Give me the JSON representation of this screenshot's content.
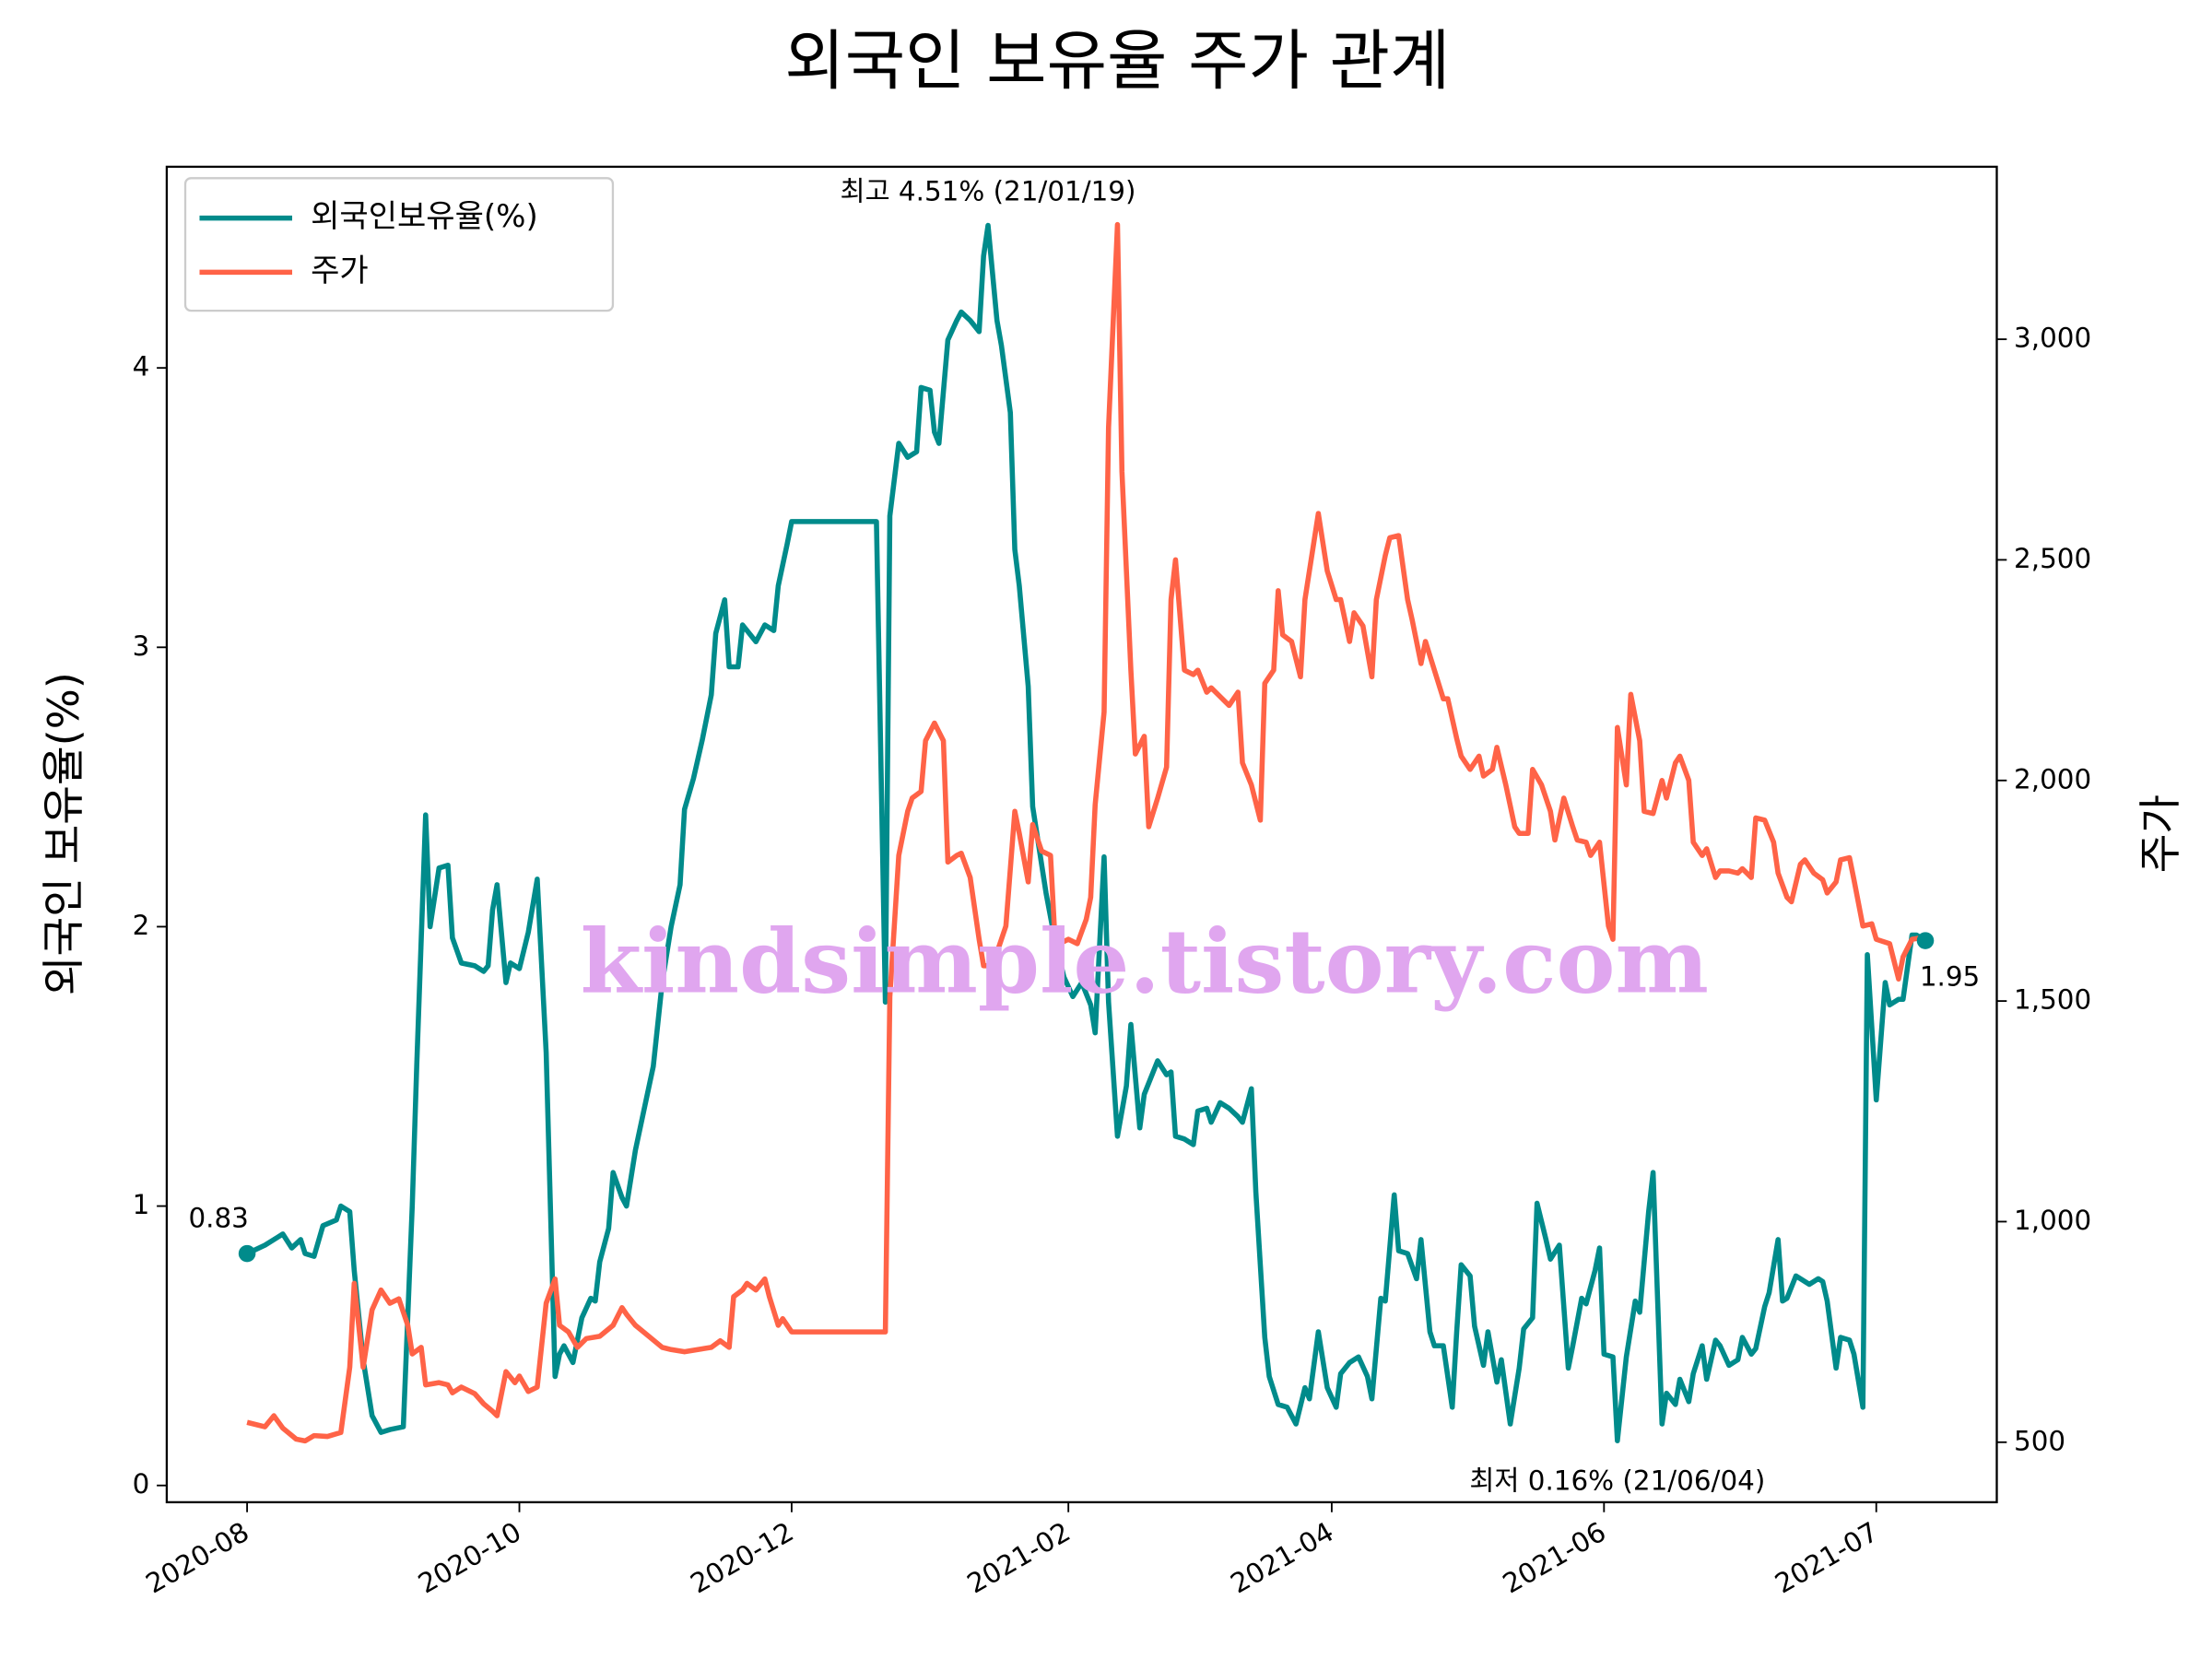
{
  "chart_data": {
    "type": "line",
    "title": "외국인 보유율 주가 관계",
    "ylabel": "외국인 보유율(%)",
    "y2label": "주가",
    "ylabel_color": "#008b8b",
    "y2label_color": "#ff6347",
    "legend": "upper left",
    "grid": false,
    "watermark": "kindsimple.tistory.com",
    "xlim": [
      "2020-07-14",
      "2021-08-28"
    ],
    "xticks": [
      {
        "value": "2020-08-01",
        "label": "2020-08"
      },
      {
        "value": "2020-10-01",
        "label": "2020-10"
      },
      {
        "value": "2020-12-01",
        "label": "2020-12"
      },
      {
        "value": "2021-02-01",
        "label": "2021-02"
      },
      {
        "value": "2021-04-01",
        "label": "2021-04"
      },
      {
        "value": "2021-06-01",
        "label": "2021-06"
      },
      {
        "value": "2021-08-01",
        "label": "2021-07"
      }
    ],
    "ylim": [
      -0.06,
      4.72
    ],
    "yticks": [
      0,
      1,
      2,
      3,
      4
    ],
    "y2lim": [
      364,
      3391
    ],
    "y2ticks": [
      500,
      {
        "value": 1000,
        "label": "1,000"
      },
      {
        "value": 1500,
        "label": "1,500"
      },
      {
        "value": 2000,
        "label": "2,000"
      },
      {
        "value": 2500,
        "label": "2,500"
      },
      {
        "value": 3000,
        "label": "3,000"
      }
    ],
    "annotations": [
      {
        "text": "최고 4.51% (21/01/19)",
        "color": "#ff0000"
      },
      {
        "text": "최저 0.16% (21/06/04)",
        "color": "#0000ff"
      }
    ],
    "series": [
      {
        "name": "외국인보유율(%)",
        "color": "#008b8b",
        "x": [
          "2020-08-01",
          "2020-08-05",
          "2020-08-08",
          "2020-08-09",
          "2020-08-11",
          "2020-08-13",
          "2020-08-14",
          "2020-08-16",
          "2020-08-18",
          "2020-08-21",
          "2020-08-22",
          "2020-08-24",
          "2020-08-25",
          "2020-08-27",
          "2020-08-29",
          "2020-08-31",
          "2020-09-02",
          "2020-09-05",
          "2020-09-07",
          "2020-09-08",
          "2020-09-10",
          "2020-09-11",
          "2020-09-13",
          "2020-09-15",
          "2020-09-16",
          "2020-09-18",
          "2020-09-21",
          "2020-09-23",
          "2020-09-24",
          "2020-09-25",
          "2020-09-26",
          "2020-09-28",
          "2020-09-29",
          "2020-10-01",
          "2020-10-03",
          "2020-10-05",
          "2020-10-07",
          "2020-10-09",
          "2020-10-10",
          "2020-10-11",
          "2020-10-13",
          "2020-10-15",
          "2020-10-17",
          "2020-10-18",
          "2020-10-19",
          "2020-10-21",
          "2020-10-22",
          "2020-10-24",
          "2020-10-25",
          "2020-10-27",
          "2020-10-29",
          "2020-10-31",
          "2020-11-02",
          "2020-11-04",
          "2020-11-06",
          "2020-11-07",
          "2020-11-09",
          "2020-11-11",
          "2020-11-13",
          "2020-11-14",
          "2020-11-16",
          "2020-11-17",
          "2020-11-19",
          "2020-11-20",
          "2020-11-23",
          "2020-11-25",
          "2020-11-27",
          "2020-11-28",
          "2020-11-30",
          "2020-12-01",
          "2020-12-20",
          "2020-12-22",
          "2020-12-23",
          "2020-12-25",
          "2020-12-27",
          "2020-12-29",
          "2020-12-30",
          "2021-01-01",
          "2021-01-02",
          "2021-01-03",
          "2021-01-05",
          "2021-01-07",
          "2021-01-08",
          "2021-01-10",
          "2021-01-12",
          "2021-01-13",
          "2021-01-14",
          "2021-01-16",
          "2021-01-17",
          "2021-01-19",
          "2021-01-20",
          "2021-01-21",
          "2021-01-23",
          "2021-01-24",
          "2021-01-27",
          "2021-01-29",
          "2021-01-31",
          "2021-02-02",
          "2021-02-04",
          "2021-02-06",
          "2021-02-07",
          "2021-02-09",
          "2021-02-10",
          "2021-02-12",
          "2021-02-14",
          "2021-02-15",
          "2021-02-17",
          "2021-02-18",
          "2021-02-20",
          "2021-02-21",
          "2021-02-23",
          "2021-02-24",
          "2021-02-25",
          "2021-02-27",
          "2021-03-01",
          "2021-03-02",
          "2021-03-04",
          "2021-03-05",
          "2021-03-07",
          "2021-03-09",
          "2021-03-11",
          "2021-03-12",
          "2021-03-14",
          "2021-03-15",
          "2021-03-17",
          "2021-03-18",
          "2021-03-20",
          "2021-03-22",
          "2021-03-24",
          "2021-03-26",
          "2021-03-27",
          "2021-03-29",
          "2021-03-31",
          "2021-04-02",
          "2021-04-03",
          "2021-04-05",
          "2021-04-07",
          "2021-04-09",
          "2021-04-10",
          "2021-04-12",
          "2021-04-13",
          "2021-04-15",
          "2021-04-16",
          "2021-04-18",
          "2021-04-20",
          "2021-04-21",
          "2021-04-23",
          "2021-04-24",
          "2021-04-26",
          "2021-04-28",
          "2021-04-29",
          "2021-04-30",
          "2021-05-02",
          "2021-05-03",
          "2021-05-05",
          "2021-05-06",
          "2021-05-08",
          "2021-05-09",
          "2021-05-11",
          "2021-05-13",
          "2021-05-14",
          "2021-05-16",
          "2021-05-17",
          "2021-05-19",
          "2021-05-20",
          "2021-05-22",
          "2021-05-24",
          "2021-05-25",
          "2021-05-27",
          "2021-05-28",
          "2021-05-30",
          "2021-05-31",
          "2021-06-01",
          "2021-06-03",
          "2021-06-04",
          "2021-06-06",
          "2021-06-08",
          "2021-06-09",
          "2021-06-11",
          "2021-06-12",
          "2021-06-14",
          "2021-06-15",
          "2021-06-17",
          "2021-06-18",
          "2021-06-20",
          "2021-06-21",
          "2021-06-23",
          "2021-06-24",
          "2021-06-26",
          "2021-06-27",
          "2021-06-29",
          "2021-07-01",
          "2021-07-02",
          "2021-07-04",
          "2021-07-05",
          "2021-07-07",
          "2021-07-08",
          "2021-07-10",
          "2021-07-11",
          "2021-07-12",
          "2021-07-14",
          "2021-07-15",
          "2021-07-17",
          "2021-07-19",
          "2021-07-20",
          "2021-07-21",
          "2021-07-23",
          "2021-07-24",
          "2021-07-26",
          "2021-07-27",
          "2021-07-29",
          "2021-07-30",
          "2021-08-01",
          "2021-08-03",
          "2021-08-04",
          "2021-08-06",
          "2021-08-07",
          "2021-08-09",
          "2021-08-10",
          "2021-08-12"
        ],
        "values": [
          0.83,
          0.86,
          0.89,
          0.9,
          0.85,
          0.88,
          0.83,
          0.82,
          0.93,
          0.95,
          1.0,
          0.98,
          0.77,
          0.45,
          0.25,
          0.19,
          0.2,
          0.21,
          1.0,
          1.5,
          2.4,
          2.0,
          2.21,
          2.22,
          1.96,
          1.87,
          1.86,
          1.84,
          1.86,
          2.06,
          2.15,
          1.8,
          1.87,
          1.85,
          1.98,
          2.17,
          1.55,
          0.39,
          0.47,
          0.5,
          0.44,
          0.6,
          0.67,
          0.66,
          0.8,
          0.92,
          1.12,
          1.03,
          1.0,
          1.2,
          1.35,
          1.5,
          1.8,
          2.0,
          2.15,
          2.42,
          2.53,
          2.67,
          2.83,
          3.05,
          3.17,
          2.93,
          2.93,
          3.08,
          3.02,
          3.08,
          3.06,
          3.22,
          3.37,
          3.45,
          3.45,
          1.73,
          3.47,
          3.73,
          3.68,
          3.7,
          3.93,
          3.92,
          3.77,
          3.73,
          4.1,
          4.17,
          4.2,
          4.17,
          4.13,
          4.4,
          4.51,
          4.17,
          4.08,
          3.84,
          3.35,
          3.22,
          2.86,
          2.43,
          2.12,
          1.95,
          1.82,
          1.75,
          1.8,
          1.72,
          1.62,
          2.25,
          1.73,
          1.25,
          1.43,
          1.65,
          1.28,
          1.4,
          1.48,
          1.52,
          1.47,
          1.48,
          1.25,
          1.24,
          1.22,
          1.34,
          1.35,
          1.3,
          1.37,
          1.35,
          1.32,
          1.3,
          1.42,
          1.05,
          0.53,
          0.39,
          0.29,
          0.28,
          0.22,
          0.35,
          0.31,
          0.55,
          0.35,
          0.28,
          0.4,
          0.44,
          0.46,
          0.39,
          0.31,
          0.67,
          0.66,
          1.04,
          0.84,
          0.83,
          0.74,
          0.88,
          0.55,
          0.5,
          0.5,
          0.28,
          0.55,
          0.79,
          0.75,
          0.57,
          0.43,
          0.55,
          0.37,
          0.45,
          0.22,
          0.42,
          0.56,
          0.6,
          1.01,
          0.88,
          0.81,
          0.86,
          0.42,
          0.5,
          0.67,
          0.65,
          0.77,
          0.85,
          0.47,
          0.46,
          0.16,
          0.46,
          0.66,
          0.62,
          0.98,
          1.12,
          0.22,
          0.33,
          0.29,
          0.38,
          0.3,
          0.4,
          0.5,
          0.38,
          0.52,
          0.5,
          0.43,
          0.45,
          0.53,
          0.47,
          0.49,
          0.64,
          0.69,
          0.88,
          0.66,
          0.67,
          0.75,
          0.74,
          0.72,
          0.74,
          0.73,
          0.66,
          0.42,
          0.53,
          0.52,
          0.47,
          0.28,
          1.9,
          1.38,
          1.8,
          1.72,
          1.74,
          1.74,
          1.97,
          1.97,
          1.95
        ]
      },
      {
        "name": "주가",
        "color": "#ff6347",
        "axis": "y2",
        "x": [
          "2020-08-01",
          "2020-08-05",
          "2020-08-07",
          "2020-08-09",
          "2020-08-12",
          "2020-08-14",
          "2020-08-16",
          "2020-08-19",
          "2020-08-22",
          "2020-08-24",
          "2020-08-25",
          "2020-08-27",
          "2020-08-29",
          "2020-08-31",
          "2020-09-02",
          "2020-09-04",
          "2020-09-06",
          "2020-09-07",
          "2020-09-09",
          "2020-09-10",
          "2020-09-13",
          "2020-09-15",
          "2020-09-16",
          "2020-09-18",
          "2020-09-21",
          "2020-09-23",
          "2020-09-25",
          "2020-09-26",
          "2020-09-28",
          "2020-09-30",
          "2020-10-01",
          "2020-10-03",
          "2020-10-05",
          "2020-10-07",
          "2020-10-09",
          "2020-10-10",
          "2020-10-12",
          "2020-10-14",
          "2020-10-16",
          "2020-10-19",
          "2020-10-22",
          "2020-10-24",
          "2020-10-25",
          "2020-10-27",
          "2020-10-30",
          "2020-11-02",
          "2020-11-04",
          "2020-11-07",
          "2020-11-10",
          "2020-11-13",
          "2020-11-15",
          "2020-11-17",
          "2020-11-18",
          "2020-11-20",
          "2020-11-21",
          "2020-11-23",
          "2020-11-25",
          "2020-11-26",
          "2020-11-28",
          "2020-11-29",
          "2020-12-01",
          "2020-12-22",
          "2020-12-23",
          "2020-12-25",
          "2020-12-27",
          "2020-12-28",
          "2020-12-30",
          "2020-12-31",
          "2021-01-02",
          "2021-01-04",
          "2021-01-05",
          "2021-01-07",
          "2021-01-08",
          "2021-01-10",
          "2021-01-12",
          "2021-01-13",
          "2021-01-15",
          "2021-01-18",
          "2021-01-20",
          "2021-01-21",
          "2021-01-23",
          "2021-01-24",
          "2021-01-26",
          "2021-01-28",
          "2021-01-29",
          "2021-01-31",
          "2021-02-01",
          "2021-02-03",
          "2021-02-05",
          "2021-02-06",
          "2021-02-07",
          "2021-02-09",
          "2021-02-10",
          "2021-02-12",
          "2021-02-13",
          "2021-02-15",
          "2021-02-16",
          "2021-02-18",
          "2021-02-19",
          "2021-02-21",
          "2021-02-23",
          "2021-02-24",
          "2021-02-25",
          "2021-02-27",
          "2021-03-01",
          "2021-03-02",
          "2021-03-04",
          "2021-03-05",
          "2021-03-07",
          "2021-03-09",
          "2021-03-11",
          "2021-03-12",
          "2021-03-14",
          "2021-03-16",
          "2021-03-17",
          "2021-03-19",
          "2021-03-20",
          "2021-03-21",
          "2021-03-23",
          "2021-03-25",
          "2021-03-26",
          "2021-03-28",
          "2021-03-29",
          "2021-03-31",
          "2021-04-02",
          "2021-04-03",
          "2021-04-05",
          "2021-04-06",
          "2021-04-08",
          "2021-04-10",
          "2021-04-11",
          "2021-04-13",
          "2021-04-14",
          "2021-04-16",
          "2021-04-18",
          "2021-04-19",
          "2021-04-21",
          "2021-04-22",
          "2021-04-24",
          "2021-04-26",
          "2021-04-27",
          "2021-04-29",
          "2021-04-30",
          "2021-05-02",
          "2021-05-04",
          "2021-05-05",
          "2021-05-07",
          "2021-05-08",
          "2021-05-10",
          "2021-05-12",
          "2021-05-13",
          "2021-05-15",
          "2021-05-16",
          "2021-05-18",
          "2021-05-20",
          "2021-05-21",
          "2021-05-23",
          "2021-05-25",
          "2021-05-26",
          "2021-05-28",
          "2021-05-29",
          "2021-05-31",
          "2021-06-02",
          "2021-06-03",
          "2021-06-04",
          "2021-06-06",
          "2021-06-07",
          "2021-06-09",
          "2021-06-10",
          "2021-06-12",
          "2021-06-14",
          "2021-06-15",
          "2021-06-17",
          "2021-06-18",
          "2021-06-20",
          "2021-06-21",
          "2021-06-23",
          "2021-06-24",
          "2021-06-26",
          "2021-06-27",
          "2021-06-29",
          "2021-07-01",
          "2021-07-02",
          "2021-07-04",
          "2021-07-05",
          "2021-07-07",
          "2021-07-09",
          "2021-07-10",
          "2021-07-12",
          "2021-07-13",
          "2021-07-15",
          "2021-07-16",
          "2021-07-18",
          "2021-07-20",
          "2021-07-21",
          "2021-07-23",
          "2021-07-24",
          "2021-07-26",
          "2021-07-27",
          "2021-07-29",
          "2021-07-31",
          "2021-08-01",
          "2021-08-04",
          "2021-08-06",
          "2021-08-07",
          "2021-08-09",
          "2021-08-12"
        ],
        "values": [
          545,
          535,
          560,
          532,
          507,
          503,
          515,
          513,
          522,
          670,
          860,
          670,
          800,
          845,
          815,
          825,
          765,
          700,
          715,
          630,
          635,
          630,
          612,
          625,
          610,
          587,
          570,
          560,
          660,
          635,
          650,
          615,
          625,
          815,
          870,
          765,
          750,
          715,
          735,
          740,
          765,
          805,
          790,
          765,
          740,
          715,
          710,
          705,
          710,
          715,
          730,
          715,
          830,
          845,
          860,
          845,
          870,
          830,
          765,
          780,
          750,
          750,
          1510,
          1830,
          1930,
          1960,
          1975,
          2090,
          2130,
          2090,
          1815,
          1830,
          1835,
          1780,
          1640,
          1580,
          1580,
          1670,
          1930,
          1880,
          1770,
          1900,
          1840,
          1830,
          1640,
          1635,
          1640,
          1630,
          1685,
          1735,
          1945,
          2155,
          2800,
          3260,
          2700,
          2250,
          2060,
          2100,
          1895,
          1960,
          2030,
          2410,
          2500,
          2250,
          2240,
          2250,
          2200,
          2210,
          2190,
          2170,
          2200,
          2040,
          1990,
          1910,
          2220,
          2250,
          2430,
          2330,
          2315,
          2235,
          2410,
          2540,
          2605,
          2475,
          2410,
          2410,
          2315,
          2380,
          2350,
          2235,
          2410,
          2510,
          2550,
          2555,
          2410,
          2365,
          2265,
          2315,
          2250,
          2185,
          2185,
          2095,
          2055,
          2025,
          2055,
          2010,
          2025,
          2075,
          1990,
          1895,
          1880,
          1880,
          2025,
          1990,
          1930,
          1865,
          1960,
          1895,
          1865,
          1860,
          1830,
          1860,
          1670,
          1640,
          2120,
          1990,
          2195,
          2090,
          1930,
          1925,
          2000,
          1960,
          2040,
          2055,
          2000,
          1860,
          1830,
          1845,
          1780,
          1795,
          1795,
          1790,
          1800,
          1780,
          1915,
          1910,
          1860,
          1790,
          1735,
          1725,
          1810,
          1820,
          1790,
          1775,
          1745,
          1770,
          1820,
          1825,
          1775,
          1670,
          1675,
          1640,
          1630,
          1550,
          1600,
          1640,
          1645
        ]
      }
    ]
  }
}
